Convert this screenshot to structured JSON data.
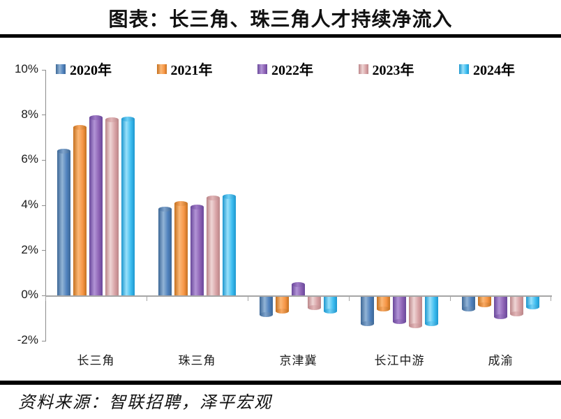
{
  "title": "图表：长三角、珠三角人才持续净流入",
  "source": "资料来源：智联招聘，泽平宏观",
  "colors": {
    "divider": "#000000",
    "axis_line": "#a6a6a6",
    "y_axis_line": "#8c8c8c"
  },
  "chart_data": {
    "type": "bar",
    "title": "图表：长三角、珠三角人才持续净流入",
    "categories": [
      "长三角",
      "珠三角",
      "京津冀",
      "长江中游",
      "成渝"
    ],
    "series": [
      {
        "name": "2020年",
        "color": "#4F81BD",
        "dark": "#3C6796",
        "light": "#92B4D6",
        "cap": "#7FA3CC",
        "values": [
          6.4,
          3.85,
          -0.8,
          -1.2,
          -0.55
        ]
      },
      {
        "name": "2021年",
        "color": "#F79646",
        "dark": "#C4701F",
        "light": "#FBB877",
        "cap": "#F9A963",
        "values": [
          7.45,
          4.1,
          -0.65,
          -0.55,
          -0.35
        ]
      },
      {
        "name": "2022年",
        "color": "#8E63B5",
        "dark": "#69479A",
        "light": "#B294D6",
        "cap": "#A07BC6",
        "values": [
          7.9,
          3.95,
          0.5,
          -1.1,
          -0.9
        ]
      },
      {
        "name": "2023年",
        "color": "#D8A3A6",
        "dark": "#BB8588",
        "light": "#EFD5D5",
        "cap": "#E2B6B8",
        "values": [
          7.8,
          4.35,
          -0.5,
          -1.3,
          -0.75
        ]
      },
      {
        "name": "2024年",
        "color": "#3DBDF0",
        "dark": "#1C96CE",
        "light": "#98E0FA",
        "cap": "#6FD0F6",
        "values": [
          7.85,
          4.4,
          -0.65,
          -1.2,
          -0.45
        ]
      }
    ],
    "xlabel": "",
    "ylabel": "",
    "ylim": [
      -2,
      10
    ],
    "y_ticks": [
      "10%",
      "8%",
      "6%",
      "4%",
      "2%",
      "0%",
      "-2%"
    ],
    "y_tick_values": [
      10,
      8,
      6,
      4,
      2,
      0,
      -2
    ],
    "legend_position": "top",
    "grid": false
  }
}
